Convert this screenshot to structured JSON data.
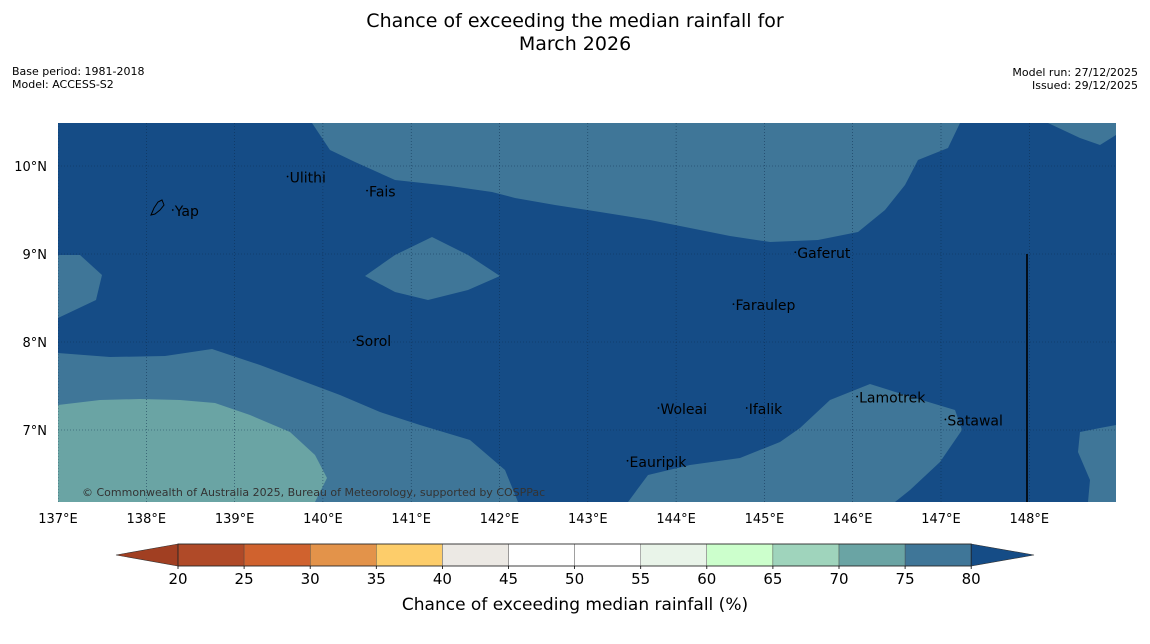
{
  "title": {
    "line1": "Chance of exceeding the median rainfall for",
    "line2": "March 2026"
  },
  "meta": {
    "base_period": "Base period: 1981-2018",
    "model": "Model: ACCESS-S2",
    "model_run": "Model run: 27/12/2025",
    "issued": "Issued: 29/12/2025"
  },
  "map": {
    "lon_ticks": [
      {
        "value": 137,
        "label": "137°E"
      },
      {
        "value": 138,
        "label": "138°E"
      },
      {
        "value": 139,
        "label": "139°E"
      },
      {
        "value": 140,
        "label": "140°E"
      },
      {
        "value": 141,
        "label": "141°E"
      },
      {
        "value": 142,
        "label": "142°E"
      },
      {
        "value": 143,
        "label": "143°E"
      },
      {
        "value": 144,
        "label": "144°E"
      },
      {
        "value": 145,
        "label": "145°E"
      },
      {
        "value": 146,
        "label": "146°E"
      },
      {
        "value": 147,
        "label": "147°E"
      },
      {
        "value": 148,
        "label": "148°E"
      }
    ],
    "lat_ticks": [
      {
        "value": 10,
        "label": "10°N"
      },
      {
        "value": 9,
        "label": "9°N"
      },
      {
        "value": 8,
        "label": "8°N"
      },
      {
        "value": 7,
        "label": "7°N"
      }
    ],
    "places": [
      {
        "name": "Yap",
        "lon": 138.3,
        "lat": 9.5
      },
      {
        "name": "Ulithi",
        "lon": 139.6,
        "lat": 9.88
      },
      {
        "name": "Fais",
        "lon": 140.5,
        "lat": 9.72
      },
      {
        "name": "Gaferut",
        "lon": 145.35,
        "lat": 9.02
      },
      {
        "name": "Faraulep",
        "lon": 144.65,
        "lat": 8.43
      },
      {
        "name": "Sorol",
        "lon": 140.35,
        "lat": 8.02
      },
      {
        "name": "Lamotrek",
        "lon": 146.05,
        "lat": 7.38
      },
      {
        "name": "Woleai",
        "lon": 143.8,
        "lat": 7.25
      },
      {
        "name": "Ifalik",
        "lon": 144.8,
        "lat": 7.25
      },
      {
        "name": "Satawal",
        "lon": 147.05,
        "lat": 7.12
      },
      {
        "name": "Eauripik",
        "lon": 143.45,
        "lat": 6.65
      }
    ],
    "credit": "© Commonwealth of Australia 2025, Bureau of Meteorology, supported by COSPPac"
  },
  "colorbar": {
    "ticks": [
      "20",
      "25",
      "30",
      "35",
      "40",
      "45",
      "50",
      "55",
      "60",
      "65",
      "70",
      "75",
      "80"
    ],
    "colors": [
      "#b04a28",
      "#d0622e",
      "#e3934a",
      "#fdcd6a",
      "#ece9e4",
      "#ffffff",
      "#ffffff",
      "#e9f4e9",
      "#ccffcc",
      "#9fd4bc",
      "#6aa4a4",
      "#3f7698"
    ],
    "under_color": "#a13f22",
    "over_color": "#154c86",
    "label": "Chance of exceeding median rainfall (%)"
  },
  "palette": {
    "deep": "#154c86",
    "c70_75": "#6aa4a4",
    "c75_80": "#3f7698"
  }
}
